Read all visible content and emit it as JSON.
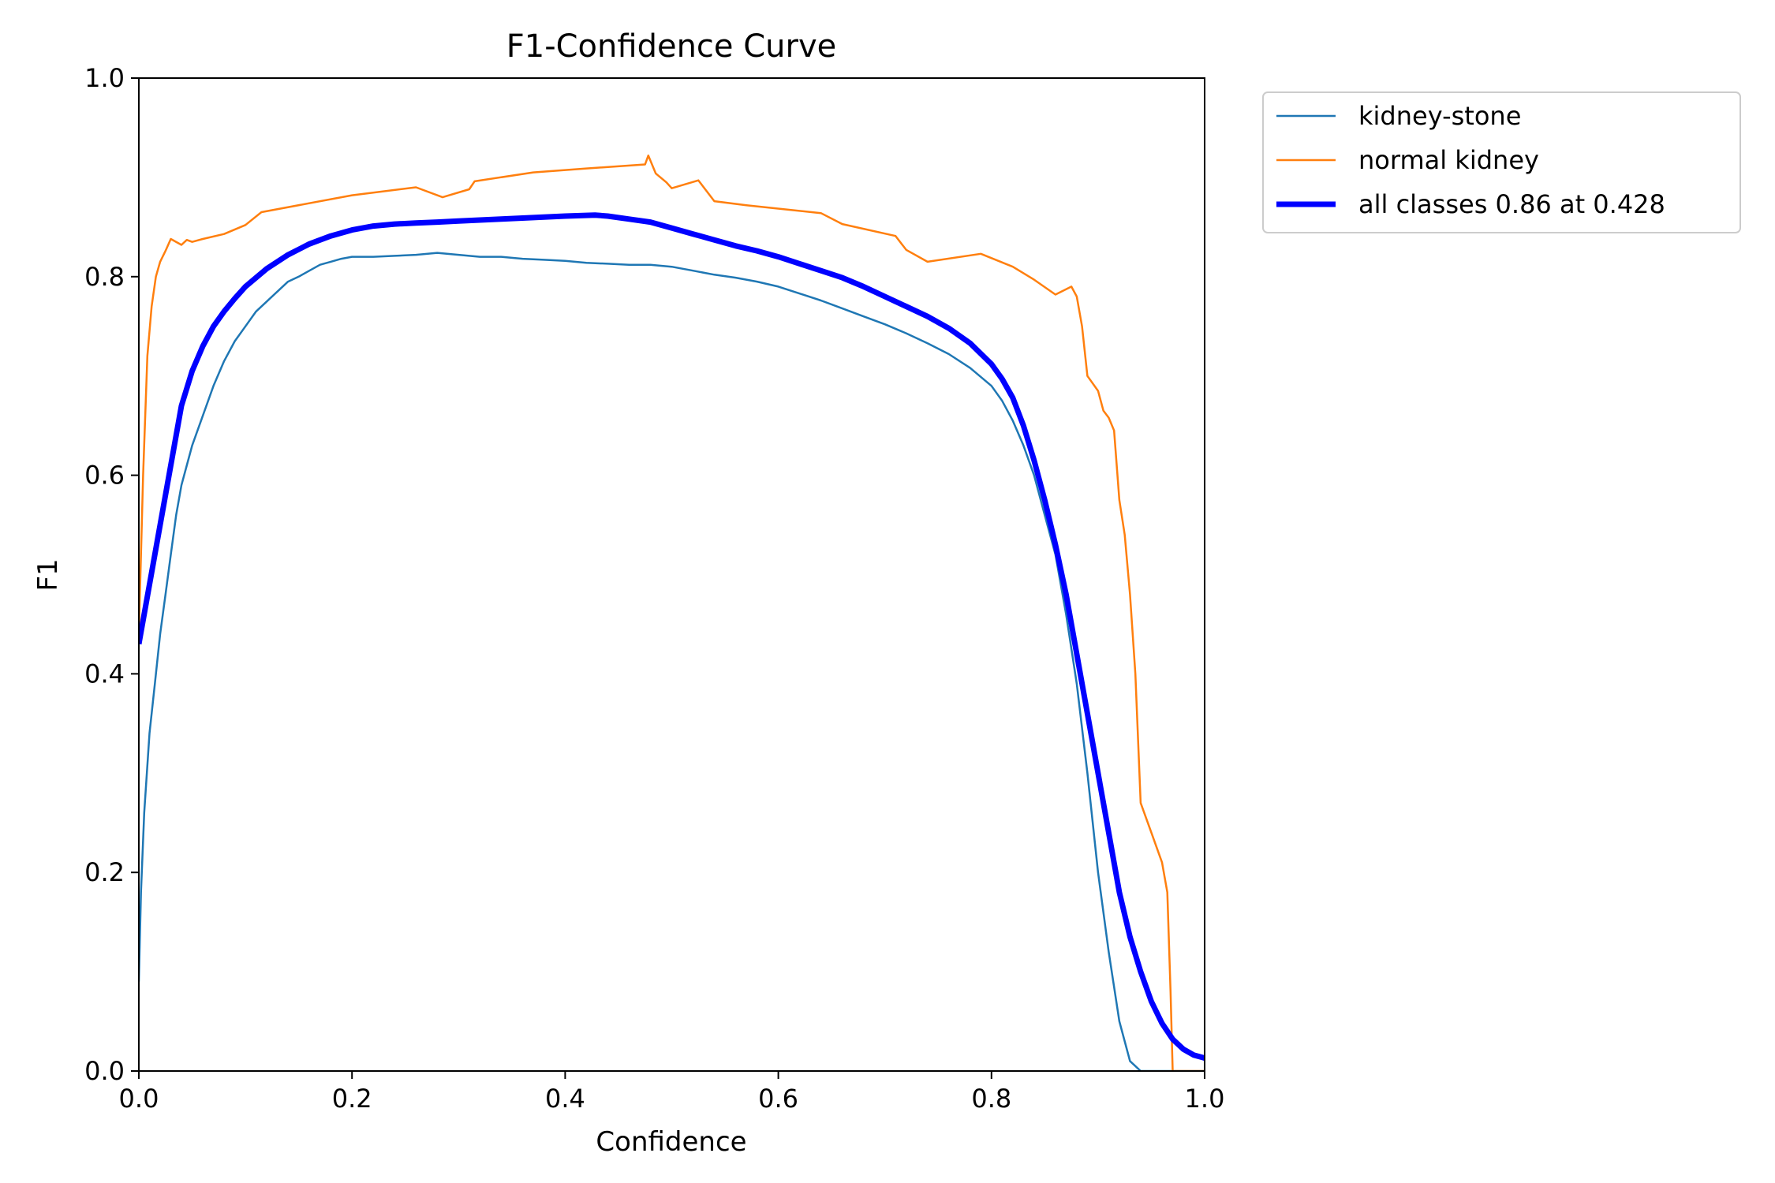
{
  "chart_data": {
    "type": "line",
    "title": "F1-Confidence Curve",
    "xlabel": "Confidence",
    "ylabel": "F1",
    "xlim": [
      0.0,
      1.0
    ],
    "ylim": [
      0.0,
      1.0
    ],
    "xticks": [
      "0.0",
      "0.2",
      "0.4",
      "0.6",
      "0.8",
      "1.0"
    ],
    "yticks": [
      "0.0",
      "0.2",
      "0.4",
      "0.6",
      "0.8",
      "1.0"
    ],
    "grid": false,
    "legend_position": "outside-top-right",
    "series": [
      {
        "name": "kidney-stone",
        "color": "#1f77b4",
        "points": [
          [
            0.0,
            0.09
          ],
          [
            0.002,
            0.18
          ],
          [
            0.005,
            0.26
          ],
          [
            0.01,
            0.34
          ],
          [
            0.015,
            0.39
          ],
          [
            0.02,
            0.44
          ],
          [
            0.025,
            0.48
          ],
          [
            0.03,
            0.52
          ],
          [
            0.035,
            0.56
          ],
          [
            0.04,
            0.59
          ],
          [
            0.045,
            0.61
          ],
          [
            0.05,
            0.63
          ],
          [
            0.06,
            0.66
          ],
          [
            0.07,
            0.69
          ],
          [
            0.08,
            0.715
          ],
          [
            0.09,
            0.735
          ],
          [
            0.1,
            0.75
          ],
          [
            0.11,
            0.765
          ],
          [
            0.12,
            0.775
          ],
          [
            0.13,
            0.785
          ],
          [
            0.14,
            0.795
          ],
          [
            0.15,
            0.8
          ],
          [
            0.16,
            0.806
          ],
          [
            0.17,
            0.812
          ],
          [
            0.18,
            0.815
          ],
          [
            0.19,
            0.818
          ],
          [
            0.2,
            0.82
          ],
          [
            0.22,
            0.82
          ],
          [
            0.24,
            0.821
          ],
          [
            0.26,
            0.822
          ],
          [
            0.28,
            0.824
          ],
          [
            0.3,
            0.822
          ],
          [
            0.32,
            0.82
          ],
          [
            0.34,
            0.82
          ],
          [
            0.36,
            0.818
          ],
          [
            0.38,
            0.817
          ],
          [
            0.4,
            0.816
          ],
          [
            0.42,
            0.814
          ],
          [
            0.44,
            0.813
          ],
          [
            0.46,
            0.812
          ],
          [
            0.48,
            0.812
          ],
          [
            0.5,
            0.81
          ],
          [
            0.52,
            0.806
          ],
          [
            0.54,
            0.802
          ],
          [
            0.56,
            0.799
          ],
          [
            0.58,
            0.795
          ],
          [
            0.6,
            0.79
          ],
          [
            0.62,
            0.783
          ],
          [
            0.64,
            0.776
          ],
          [
            0.66,
            0.768
          ],
          [
            0.68,
            0.76
          ],
          [
            0.7,
            0.752
          ],
          [
            0.72,
            0.743
          ],
          [
            0.74,
            0.733
          ],
          [
            0.76,
            0.722
          ],
          [
            0.78,
            0.708
          ],
          [
            0.8,
            0.69
          ],
          [
            0.81,
            0.675
          ],
          [
            0.82,
            0.655
          ],
          [
            0.83,
            0.63
          ],
          [
            0.84,
            0.6
          ],
          [
            0.85,
            0.56
          ],
          [
            0.86,
            0.52
          ],
          [
            0.87,
            0.46
          ],
          [
            0.88,
            0.39
          ],
          [
            0.89,
            0.3
          ],
          [
            0.9,
            0.2
          ],
          [
            0.91,
            0.12
          ],
          [
            0.92,
            0.05
          ],
          [
            0.93,
            0.01
          ],
          [
            0.94,
            0.0
          ],
          [
            1.0,
            0.0
          ]
        ]
      },
      {
        "name": "normal kidney",
        "color": "#ff7f0e",
        "points": [
          [
            0.0,
            0.44
          ],
          [
            0.004,
            0.6
          ],
          [
            0.008,
            0.72
          ],
          [
            0.012,
            0.77
          ],
          [
            0.016,
            0.8
          ],
          [
            0.02,
            0.815
          ],
          [
            0.025,
            0.826
          ],
          [
            0.03,
            0.838
          ],
          [
            0.04,
            0.832
          ],
          [
            0.045,
            0.837
          ],
          [
            0.05,
            0.835
          ],
          [
            0.06,
            0.838
          ],
          [
            0.08,
            0.843
          ],
          [
            0.1,
            0.852
          ],
          [
            0.115,
            0.865
          ],
          [
            0.2,
            0.882
          ],
          [
            0.26,
            0.89
          ],
          [
            0.285,
            0.88
          ],
          [
            0.31,
            0.888
          ],
          [
            0.315,
            0.896
          ],
          [
            0.37,
            0.905
          ],
          [
            0.42,
            0.909
          ],
          [
            0.475,
            0.913
          ],
          [
            0.478,
            0.922
          ],
          [
            0.485,
            0.904
          ],
          [
            0.495,
            0.895
          ],
          [
            0.5,
            0.889
          ],
          [
            0.525,
            0.897
          ],
          [
            0.54,
            0.876
          ],
          [
            0.57,
            0.872
          ],
          [
            0.64,
            0.864
          ],
          [
            0.66,
            0.853
          ],
          [
            0.71,
            0.841
          ],
          [
            0.72,
            0.827
          ],
          [
            0.74,
            0.815
          ],
          [
            0.79,
            0.823
          ],
          [
            0.82,
            0.81
          ],
          [
            0.84,
            0.797
          ],
          [
            0.86,
            0.782
          ],
          [
            0.875,
            0.79
          ],
          [
            0.88,
            0.78
          ],
          [
            0.885,
            0.75
          ],
          [
            0.89,
            0.7
          ],
          [
            0.9,
            0.685
          ],
          [
            0.905,
            0.665
          ],
          [
            0.91,
            0.658
          ],
          [
            0.915,
            0.645
          ],
          [
            0.92,
            0.575
          ],
          [
            0.925,
            0.54
          ],
          [
            0.93,
            0.48
          ],
          [
            0.935,
            0.4
          ],
          [
            0.94,
            0.27
          ],
          [
            0.95,
            0.24
          ],
          [
            0.96,
            0.21
          ],
          [
            0.965,
            0.18
          ],
          [
            0.968,
            0.08
          ],
          [
            0.97,
            0.0
          ],
          [
            1.0,
            0.0
          ]
        ]
      },
      {
        "name": "all classes 0.86 at 0.428",
        "color": "#0000ff",
        "points": [
          [
            0.0,
            0.43
          ],
          [
            0.01,
            0.49
          ],
          [
            0.02,
            0.55
          ],
          [
            0.03,
            0.61
          ],
          [
            0.04,
            0.67
          ],
          [
            0.05,
            0.705
          ],
          [
            0.06,
            0.73
          ],
          [
            0.07,
            0.75
          ],
          [
            0.08,
            0.765
          ],
          [
            0.09,
            0.778
          ],
          [
            0.1,
            0.79
          ],
          [
            0.12,
            0.808
          ],
          [
            0.14,
            0.822
          ],
          [
            0.16,
            0.833
          ],
          [
            0.18,
            0.841
          ],
          [
            0.2,
            0.847
          ],
          [
            0.22,
            0.851
          ],
          [
            0.24,
            0.853
          ],
          [
            0.26,
            0.854
          ],
          [
            0.28,
            0.855
          ],
          [
            0.3,
            0.856
          ],
          [
            0.32,
            0.857
          ],
          [
            0.34,
            0.858
          ],
          [
            0.36,
            0.859
          ],
          [
            0.38,
            0.86
          ],
          [
            0.4,
            0.861
          ],
          [
            0.428,
            0.862
          ],
          [
            0.44,
            0.861
          ],
          [
            0.46,
            0.858
          ],
          [
            0.48,
            0.855
          ],
          [
            0.5,
            0.849
          ],
          [
            0.52,
            0.843
          ],
          [
            0.54,
            0.837
          ],
          [
            0.56,
            0.831
          ],
          [
            0.58,
            0.826
          ],
          [
            0.6,
            0.82
          ],
          [
            0.62,
            0.813
          ],
          [
            0.64,
            0.806
          ],
          [
            0.66,
            0.799
          ],
          [
            0.68,
            0.79
          ],
          [
            0.7,
            0.78
          ],
          [
            0.72,
            0.77
          ],
          [
            0.74,
            0.76
          ],
          [
            0.76,
            0.748
          ],
          [
            0.78,
            0.733
          ],
          [
            0.8,
            0.712
          ],
          [
            0.81,
            0.697
          ],
          [
            0.82,
            0.678
          ],
          [
            0.83,
            0.65
          ],
          [
            0.84,
            0.615
          ],
          [
            0.85,
            0.575
          ],
          [
            0.86,
            0.53
          ],
          [
            0.87,
            0.48
          ],
          [
            0.88,
            0.42
          ],
          [
            0.89,
            0.36
          ],
          [
            0.9,
            0.3
          ],
          [
            0.91,
            0.24
          ],
          [
            0.92,
            0.18
          ],
          [
            0.93,
            0.135
          ],
          [
            0.94,
            0.1
          ],
          [
            0.95,
            0.07
          ],
          [
            0.96,
            0.048
          ],
          [
            0.97,
            0.032
          ],
          [
            0.98,
            0.022
          ],
          [
            0.99,
            0.016
          ],
          [
            1.0,
            0.013
          ]
        ]
      }
    ]
  }
}
